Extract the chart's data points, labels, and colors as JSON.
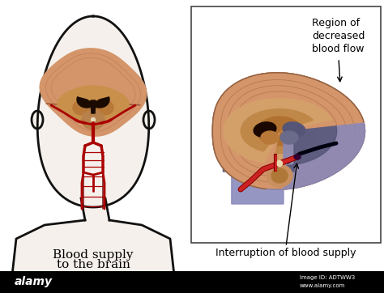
{
  "background_color": "#ffffff",
  "left_label_line1": "Blood supply",
  "left_label_line2": "to the brain",
  "right_label": "Interruption of blood supply",
  "top_right_label_line1": "Region of",
  "top_right_label_line2": "decreased",
  "top_right_label_line3": "blood flow",
  "bottom_bar_color": "#000000",
  "alamy_text": "alamy",
  "image_id": "Image ID: ADTWW3",
  "url": "www.alamy.com",
  "border_color": "#555555",
  "brain_outer_color": "#d4956a",
  "brain_gyri_color": "#c4845a",
  "brain_inner_bg": "#c8905a",
  "brain_basal_color": "#b07a3a",
  "ventricle_color": "#1a0a00",
  "brainstem_color": "#b8804a",
  "head_outline_color": "#111111",
  "artery_color": "#aa0000",
  "artery_dark": "#660000",
  "ischemia_color": "#8888bb",
  "ischemia_dark": "#555577",
  "infarct_black": "#111122",
  "figsize": [
    4.74,
    3.62
  ],
  "dpi": 100
}
